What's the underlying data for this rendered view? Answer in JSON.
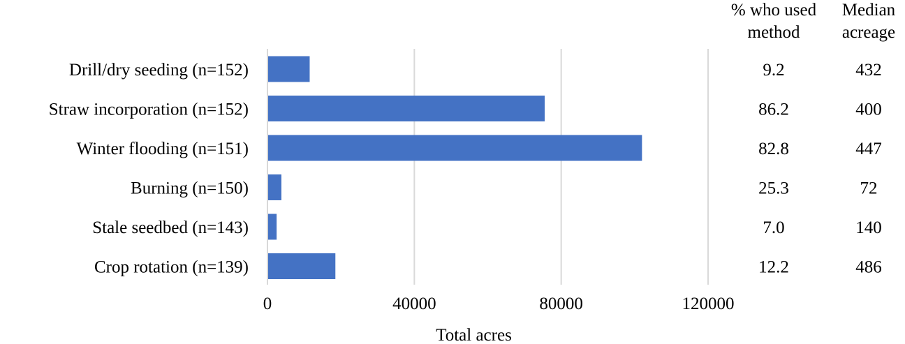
{
  "chart_data": {
    "type": "bar",
    "orientation": "horizontal",
    "categories": [
      "Drill/dry seeding (n=152)",
      "Straw incorporation (n=152)",
      "Winter flooding (n=151)",
      "Burning (n=150)",
      "Stale seedbed (n=143)",
      "Crop rotation (n=139)"
    ],
    "values": [
      11500,
      75500,
      102000,
      3800,
      2500,
      18500
    ],
    "xlabel": "Total acres",
    "xlim": [
      0,
      120000
    ],
    "xticks": [
      0,
      40000,
      80000,
      120000
    ],
    "xtick_labels": [
      "0",
      "40000",
      "80000",
      "120000"
    ],
    "grid": "vertical",
    "bar_color": "#4472C4",
    "grid_color": "#d9d9d9",
    "table_columns": [
      {
        "header": [
          "% who used",
          "method"
        ],
        "values": [
          "9.2",
          "86.2",
          "82.8",
          "25.3",
          "7.0",
          "12.2"
        ]
      },
      {
        "header": [
          "Median",
          "acreage"
        ],
        "values": [
          "432",
          "400",
          "447",
          "72",
          "140",
          "486"
        ]
      }
    ]
  }
}
